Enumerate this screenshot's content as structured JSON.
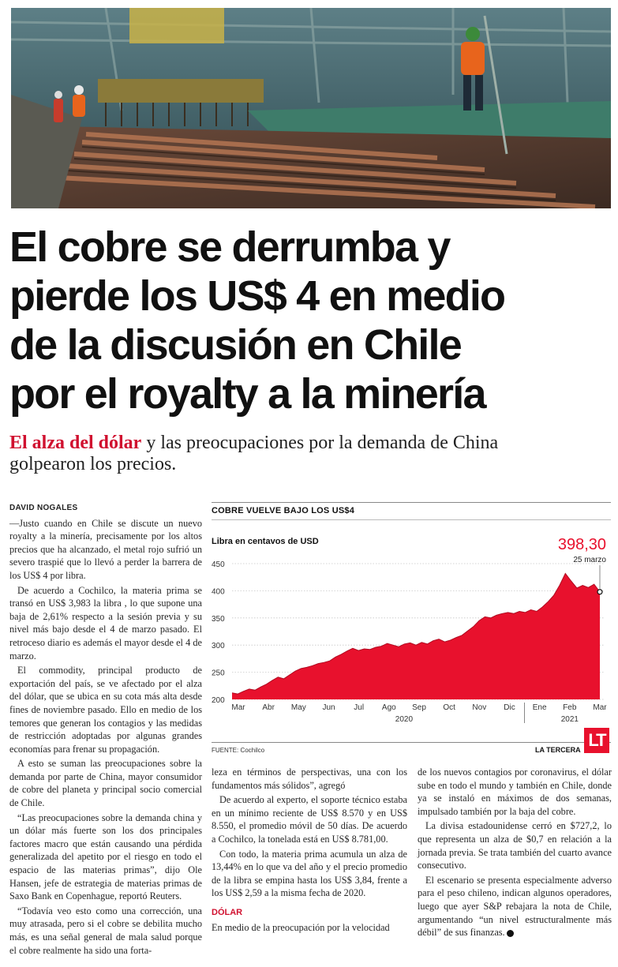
{
  "article": {
    "headline_lines": [
      "El cobre se derrumba y",
      "pierde los US$ 4 en medio",
      "de la discusión en Chile",
      "por el royalty a la minería"
    ],
    "deck_lead": "El alza del dólar",
    "deck_rest": " y las preocupaciones por la demanda de China golpearon los precios.",
    "byline": "DAVID NOGALES",
    "col1_paragraphs": [
      "—Justo cuando en Chile se discute un nuevo royalty a la minería, precisamente por los altos precios que ha alcanzado, el metal rojo sufrió un severo traspié que lo llevó a perder la barrera de los US$ 4 por libra.",
      "De acuerdo a Cochilco, la materia prima se transó en US$ 3,983 la libra , lo que supone una baja de 2,61% respecto a la sesión previa y su nivel más bajo desde el 4 de marzo pasado. El retroceso diario es además el mayor desde el 4 de marzo.",
      "El commodity, principal producto de exportación del país, se ve afectado por el alza del dólar, que se ubica en su cota más alta desde fines de noviembre pasado. Ello en medio de los temores que generan los contagios y las medidas de restricción adoptadas por algunas grandes economías para frenar su propagación.",
      "A esto se suman las preocupaciones sobre la demanda por parte de China, mayor consumidor de cobre del planeta y principal socio comercial de Chile.",
      "“Las preocupaciones sobre la demanda china y un dólar más fuerte son los dos principales factores macro que están causando una pérdida generalizada del apetito por el riesgo en todo el espacio de las materias primas”, dijo Ole Hansen, jefe de estrategia de materias primas de Saxo Bank en Copenhague, reportó Reuters.",
      "“Todavía veo esto como una corrección, una muy atrasada, pero si el cobre se debilita mucho más, es una señal general de mala salud porque el cobre realmente ha sido una forta-"
    ],
    "col2_paragraphs": [
      "leza en términos de perspectivas, una con los fundamentos más sólidos”, agregó",
      "De acuerdo al experto, el soporte técnico estaba en un mínimo reciente de US$ 8.570 y en US$ 8.550, el promedio móvil de 50 días. De acuerdo a Cochilco, la tonelada está en US$ 8.781,00.",
      "Con todo, la materia prima acumula un alza de 13,44% en lo que va del año y el precio promedio de la libra se empina hasta los US$ 3,84, frente a los US$ 2,59 a la misma fecha de 2020."
    ],
    "col2_subhead": "DÓLAR",
    "col2_after_subhead": "En medio de la preocupación por la velocidad",
    "col3_paragraphs": [
      "de los nuevos contagios por coronavirus, el dólar sube en todo el mundo y también en Chile, donde ya se instaló en máximos de dos semanas, impulsado también por la baja del cobre.",
      "La divisa estadounidense cerró en $727,2, lo que representa un alza de $0,7 en relación a la jornada previa. Se trata también del cuarto avance consecutivo.",
      "El escenario se presenta especialmente adverso para el peso chileno, indican algunos operadores, luego que ayer S&P rebajara la nota de Chile, argumentando “un nivel estructuralmente más débil” de sus finanzas."
    ],
    "end_mark": "P"
  },
  "chart": {
    "title": "COBRE VUELVE BAJO LOS US$4",
    "subtitle": "Libra en centavos de USD",
    "source": "FUENTE: Cochilco",
    "publisher": "LA TERCERA",
    "logo_text": "LT",
    "accent_color": "#e8112d"
  },
  "chart_data": {
    "type": "area",
    "title": "COBRE VUELVE BAJO LOS US$4",
    "ylabel": "Libra en centavos de USD",
    "ylim": [
      200,
      450
    ],
    "yticks": [
      200,
      250,
      300,
      350,
      400,
      450
    ],
    "grid": true,
    "x_tick_labels": [
      "Mar",
      "Abr",
      "May",
      "Jun",
      "Jul",
      "Ago",
      "Sep",
      "Oct",
      "Nov",
      "Dic",
      "Ene",
      "Feb",
      "Mar"
    ],
    "year_labels": [
      "2020",
      "2021"
    ],
    "series": [
      {
        "values": [
          212,
          210,
          215,
          219,
          217,
          223,
          228,
          235,
          241,
          238,
          245,
          252,
          257,
          259,
          262,
          266,
          268,
          271,
          278,
          283,
          289,
          294,
          290,
          293,
          292,
          296,
          298,
          303,
          300,
          297,
          302,
          304,
          300,
          305,
          302,
          308,
          311,
          306,
          309,
          314,
          318,
          326,
          334,
          345,
          352,
          350,
          355,
          358,
          360,
          358,
          362,
          360,
          365,
          362,
          370,
          380,
          392,
          410,
          432,
          418,
          405,
          410,
          406,
          412,
          398
        ]
      }
    ],
    "annotation": {
      "value": "398,30",
      "date": "25 marzo"
    }
  }
}
